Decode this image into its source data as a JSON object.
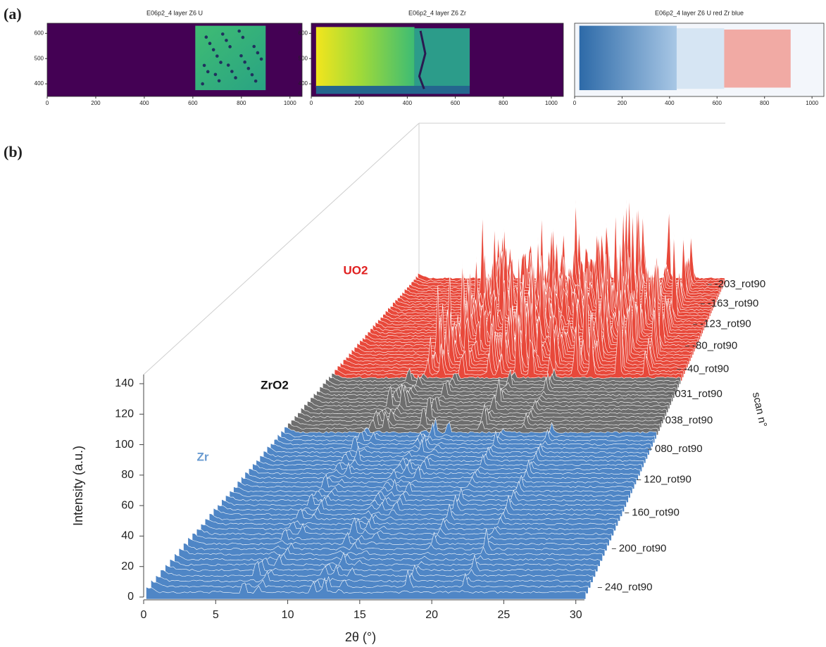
{
  "figure": {
    "panel_labels": [
      "(a)",
      "(b)"
    ]
  },
  "chart_data": [
    {
      "type": "image",
      "title": "E06p2_4 layer Z6 U",
      "xlim": [
        0,
        1050
      ],
      "xticks": [
        0,
        200,
        400,
        600,
        800,
        1000
      ],
      "ylim": [
        350,
        640
      ],
      "yticks": [
        400,
        500,
        600
      ]
    },
    {
      "type": "image",
      "title": "E06p2_4 layer Z6 Zr",
      "xlim": [
        0,
        1050
      ],
      "xticks": [
        0,
        200,
        400,
        600,
        800,
        1000
      ],
      "ylim": [
        350,
        640
      ],
      "yticks": [
        400,
        500,
        600
      ]
    },
    {
      "type": "image",
      "title": "E06p2_4 layer Z6 U red Zr blue",
      "xlim": [
        0,
        1050
      ],
      "xticks": [
        0,
        200,
        400,
        600,
        800,
        1000
      ],
      "ylim": [
        350,
        640
      ]
    },
    {
      "type": "waterfall",
      "xlabel": "2θ (°)",
      "ylabel": "Intensity (a.u.)",
      "zlabel": "scan n°",
      "xlim": [
        0,
        30.6
      ],
      "xticks": [
        0,
        5,
        10,
        15,
        20,
        25,
        30
      ],
      "ylim": [
        0,
        146
      ],
      "yticks": [
        0,
        20,
        40,
        60,
        80,
        100,
        120,
        140
      ],
      "scans": [
        "-203_rot90",
        "-163_rot90",
        "-123_rot90",
        "-80_rot90",
        "-40_rot90",
        "031_rot90",
        "038_rot90",
        "080_rot90",
        "120_rot90",
        "160_rot90",
        "200_rot90",
        "240_rot90"
      ],
      "series": [
        {
          "name": "UO2",
          "color": "#e8483a",
          "label_color": "#e02020"
        },
        {
          "name": "ZrO2",
          "color": "#6e6e6e",
          "label_color": "#111111"
        },
        {
          "name": "Zr",
          "color": "#4f86c6",
          "label_color": "#6a9bd1"
        }
      ]
    }
  ]
}
